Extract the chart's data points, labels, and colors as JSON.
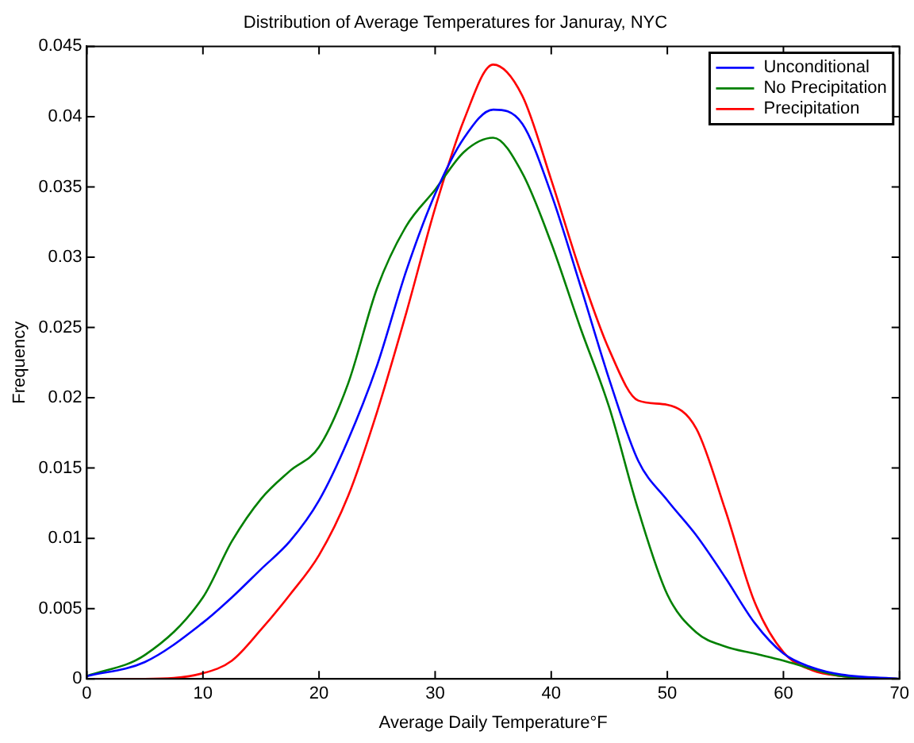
{
  "chart_data": {
    "type": "line",
    "title": "Distribution of Average Temperatures for Januray, NYC",
    "xlabel": "Average Daily Temperature°F",
    "ylabel": "Frequency",
    "x": [
      0,
      5,
      10,
      12.5,
      15,
      17.5,
      20,
      22.5,
      25,
      27.5,
      30,
      32.5,
      35,
      37.5,
      40,
      42.5,
      45,
      47.5,
      50,
      52.5,
      55,
      57.5,
      60,
      62.5,
      65,
      70
    ],
    "series": [
      {
        "name": "Unconditional",
        "color": "#0000ff",
        "values": [
          0.0002,
          0.0012,
          0.004,
          0.0058,
          0.0078,
          0.0098,
          0.0127,
          0.017,
          0.0223,
          0.029,
          0.0345,
          0.0385,
          0.0405,
          0.0395,
          0.0345,
          0.028,
          0.0213,
          0.0155,
          0.0127,
          0.0102,
          0.0072,
          0.004,
          0.0018,
          0.0008,
          0.0003,
          0
        ]
      },
      {
        "name": "No Precipitation",
        "color": "#008000",
        "values": [
          0.0002,
          0.0017,
          0.0058,
          0.0098,
          0.0128,
          0.0148,
          0.0165,
          0.021,
          0.0278,
          0.0322,
          0.0348,
          0.0375,
          0.0385,
          0.036,
          0.031,
          0.025,
          0.0193,
          0.012,
          0.006,
          0.0033,
          0.0023,
          0.0018,
          0.0013,
          0.0007,
          0.0002,
          0
        ]
      },
      {
        "name": "Precipitation",
        "color": "#ff0000",
        "values": [
          0,
          0,
          0.0004,
          0.0013,
          0.0035,
          0.006,
          0.0088,
          0.013,
          0.019,
          0.026,
          0.0335,
          0.0398,
          0.0437,
          0.0415,
          0.0355,
          0.029,
          0.0234,
          0.0198,
          0.0195,
          0.0178,
          0.012,
          0.0055,
          0.0019,
          0.0006,
          0.0002,
          0
        ]
      }
    ],
    "xlim": [
      0,
      70
    ],
    "xticks": [
      0,
      10,
      20,
      30,
      40,
      50,
      60,
      70
    ],
    "ylim": [
      0,
      0.045
    ],
    "yticks": [
      0,
      0.005,
      0.01,
      0.015,
      0.02,
      0.025,
      0.03,
      0.035,
      0.04,
      0.045
    ],
    "grid": false,
    "legend": "top right",
    "marker": "none",
    "line_style": "solid"
  }
}
